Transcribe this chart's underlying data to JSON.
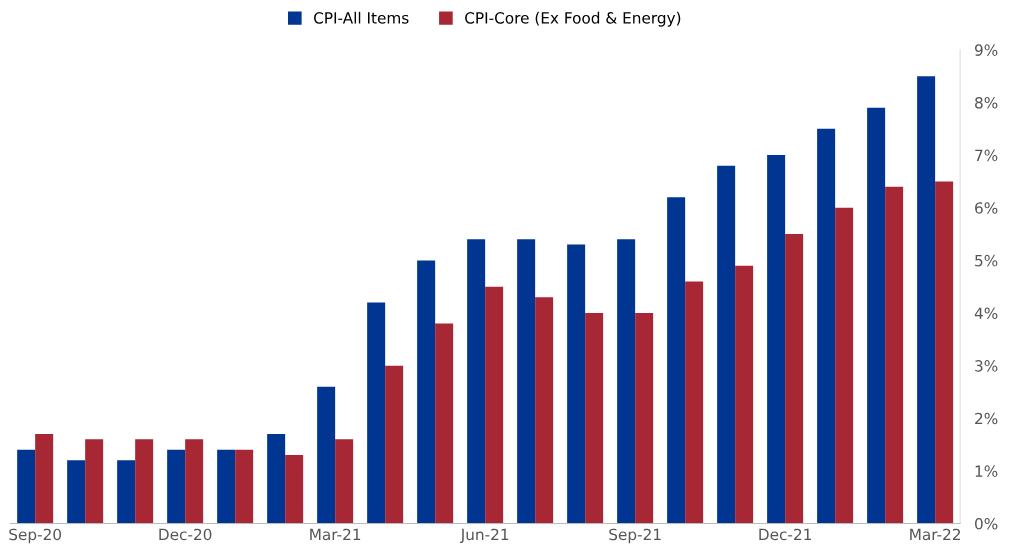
{
  "chart_data": {
    "type": "bar",
    "categories": [
      "Sep-20",
      null,
      null,
      "Dec-20",
      null,
      null,
      "Mar-21",
      null,
      null,
      "Jun-21",
      null,
      null,
      "Sep-21",
      null,
      null,
      "Dec-21",
      null,
      null,
      "Mar-22"
    ],
    "series": [
      {
        "name": "CPI-All Items",
        "color": "#003591",
        "values": [
          1.4,
          1.2,
          1.2,
          1.4,
          1.4,
          1.7,
          2.6,
          4.2,
          5.0,
          5.4,
          5.4,
          5.3,
          5.4,
          6.2,
          6.8,
          7.0,
          7.5,
          7.9,
          8.5
        ]
      },
      {
        "name": "CPI-Core (Ex Food & Energy)",
        "color": "#a72834",
        "values": [
          1.7,
          1.6,
          1.6,
          1.6,
          1.4,
          1.3,
          1.6,
          3.0,
          3.8,
          4.5,
          4.3,
          4.0,
          4.0,
          4.6,
          4.9,
          5.5,
          6.0,
          6.4,
          6.5
        ]
      }
    ],
    "ylim": [
      0,
      9
    ],
    "yticks": [
      {
        "value": 0,
        "label": "0%"
      },
      {
        "value": 1,
        "label": "1%"
      },
      {
        "value": 2,
        "label": "2%"
      },
      {
        "value": 3,
        "label": "3%"
      },
      {
        "value": 4,
        "label": "4%"
      },
      {
        "value": 5,
        "label": "5%"
      },
      {
        "value": 6,
        "label": "6%"
      },
      {
        "value": 7,
        "label": "7%"
      },
      {
        "value": 8,
        "label": "8%"
      },
      {
        "value": 9,
        "label": "9%"
      }
    ],
    "grid": false,
    "legend": "top"
  }
}
